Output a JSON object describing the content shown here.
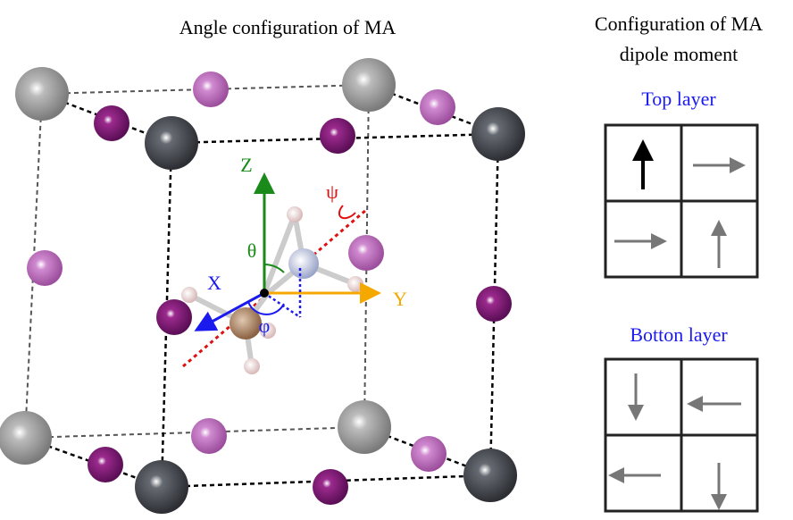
{
  "title": "Angle configuration of MA",
  "panel_title": {
    "line1": "Configuration of MA",
    "line2": "dipole moment"
  },
  "axes": {
    "z": "Z",
    "x": "X",
    "y": "Y"
  },
  "angles": {
    "theta": "θ",
    "phi": "φ",
    "psi": "ψ"
  },
  "layers": [
    {
      "label": "Top layer"
    },
    {
      "label": "Botton layer"
    }
  ]
}
